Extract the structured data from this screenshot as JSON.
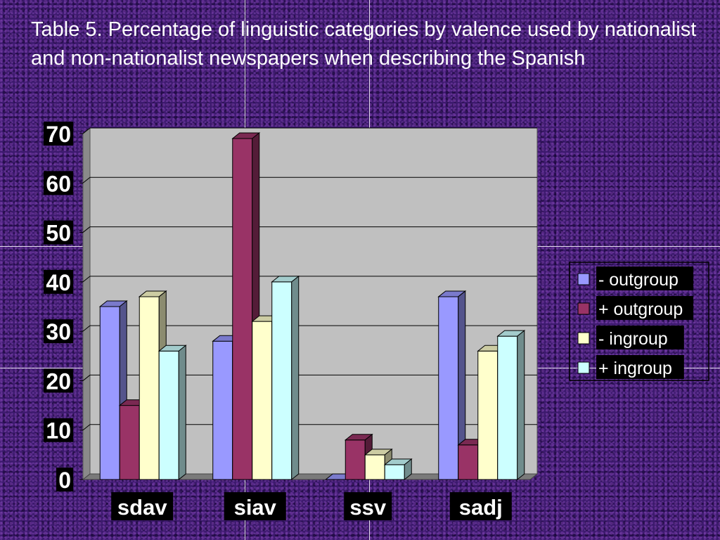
{
  "slide": {
    "title": "Table 5. Percentage of linguistic categories by valence used by nationalist and non-nationalist newspapers when describing the Spanish"
  },
  "chart_data": {
    "type": "bar",
    "categories": [
      "sdav",
      "siav",
      "ssv",
      "sadj"
    ],
    "series": [
      {
        "name": "- outgroup",
        "values": [
          35,
          28,
          0,
          37
        ],
        "color": "#9999ff"
      },
      {
        "name": "+ outgroup",
        "values": [
          15,
          69,
          8,
          7
        ],
        "color": "#993366"
      },
      {
        "name": "- ingroup",
        "values": [
          37,
          32,
          5,
          26
        ],
        "color": "#ffffcc"
      },
      {
        "name": "+ ingroup",
        "values": [
          26,
          40,
          3,
          29
        ],
        "color": "#ccffff"
      }
    ],
    "ylim": [
      0,
      70
    ],
    "yticks": [
      0,
      10,
      20,
      30,
      40,
      50,
      60,
      70
    ],
    "grid": true,
    "legend_position": "right",
    "plot_background": "#c0c0c0"
  }
}
